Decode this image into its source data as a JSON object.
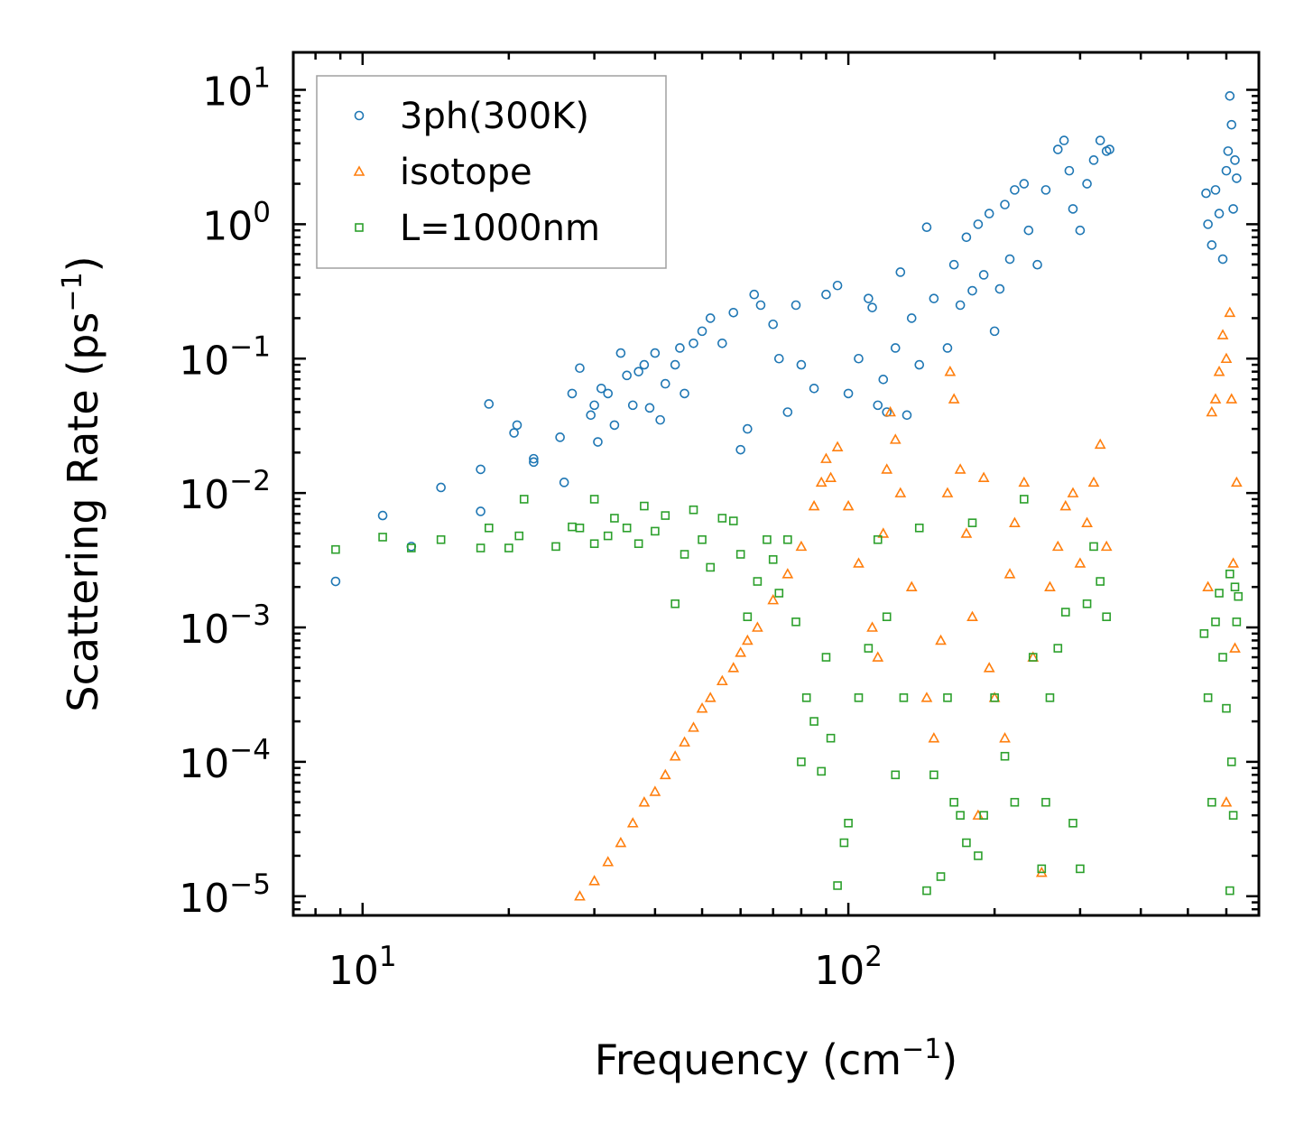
{
  "chart_data": {
    "type": "scatter",
    "scale": {
      "x": "log",
      "y": "log"
    },
    "xlabel": "Frequency (cm",
    "xlabel_sup": "−1",
    "xlabel_end": ")",
    "ylabel": "Scattering Rate (ps",
    "ylabel_sup": "−1",
    "ylabel_end": ")",
    "xlim": [
      7.2,
      700
    ],
    "ylim": [
      7.2e-06,
      19
    ],
    "grid": false,
    "legend_position": "top-left",
    "x_ticks": [
      {
        "value": 10,
        "base": "10",
        "exp": "1"
      },
      {
        "value": 100,
        "base": "10",
        "exp": "2"
      }
    ],
    "y_ticks": [
      {
        "value": 10,
        "base": "10",
        "exp": "1"
      },
      {
        "value": 1,
        "base": "10",
        "exp": "0"
      },
      {
        "value": 0.1,
        "base": "10",
        "exp": "−1"
      },
      {
        "value": 0.01,
        "base": "10",
        "exp": "−2"
      },
      {
        "value": 0.001,
        "base": "10",
        "exp": "−3"
      },
      {
        "value": 0.0001,
        "base": "10",
        "exp": "−4"
      },
      {
        "value": 1e-05,
        "base": "10",
        "exp": "−5"
      }
    ],
    "series": [
      {
        "name": "3ph(300K)",
        "marker": "circle",
        "color": "#1f77b4",
        "points": [
          [
            8.8,
            0.0022
          ],
          [
            11,
            0.0068
          ],
          [
            12.6,
            0.004
          ],
          [
            14.5,
            0.011
          ],
          [
            17.5,
            0.0073
          ],
          [
            17.5,
            0.015
          ],
          [
            18.2,
            0.046
          ],
          [
            20.5,
            0.028
          ],
          [
            20.8,
            0.032
          ],
          [
            22.5,
            0.017
          ],
          [
            22.5,
            0.018
          ],
          [
            25.5,
            0.026
          ],
          [
            26,
            0.012
          ],
          [
            27,
            0.055
          ],
          [
            28,
            0.085
          ],
          [
            29.5,
            0.038
          ],
          [
            30,
            0.045
          ],
          [
            30.5,
            0.024
          ],
          [
            31,
            0.06
          ],
          [
            32,
            0.055
          ],
          [
            33,
            0.032
          ],
          [
            34,
            0.11
          ],
          [
            35,
            0.075
          ],
          [
            36,
            0.045
          ],
          [
            37,
            0.08
          ],
          [
            38,
            0.09
          ],
          [
            39,
            0.043
          ],
          [
            40,
            0.11
          ],
          [
            41,
            0.035
          ],
          [
            42,
            0.065
          ],
          [
            44,
            0.09
          ],
          [
            45,
            0.12
          ],
          [
            46,
            0.055
          ],
          [
            48,
            0.13
          ],
          [
            50,
            0.16
          ],
          [
            52,
            0.2
          ],
          [
            55,
            0.13
          ],
          [
            58,
            0.22
          ],
          [
            60,
            0.021
          ],
          [
            62,
            0.03
          ],
          [
            64,
            0.3
          ],
          [
            66,
            0.25
          ],
          [
            70,
            0.18
          ],
          [
            72,
            0.1
          ],
          [
            75,
            0.04
          ],
          [
            78,
            0.25
          ],
          [
            80,
            0.09
          ],
          [
            85,
            0.06
          ],
          [
            90,
            0.3
          ],
          [
            95,
            0.35
          ],
          [
            100,
            0.055
          ],
          [
            105,
            0.1
          ],
          [
            110,
            0.28
          ],
          [
            112,
            0.24
          ],
          [
            115,
            0.045
          ],
          [
            118,
            0.07
          ],
          [
            120,
            0.04
          ],
          [
            125,
            0.12
          ],
          [
            128,
            0.44
          ],
          [
            132,
            0.038
          ],
          [
            135,
            0.2
          ],
          [
            140,
            0.09
          ],
          [
            145,
            0.95
          ],
          [
            150,
            0.28
          ],
          [
            160,
            0.12
          ],
          [
            165,
            0.5
          ],
          [
            170,
            0.25
          ],
          [
            175,
            0.8
          ],
          [
            180,
            0.32
          ],
          [
            185,
            1.0
          ],
          [
            190,
            0.42
          ],
          [
            195,
            1.2
          ],
          [
            200,
            0.16
          ],
          [
            205,
            0.33
          ],
          [
            210,
            1.4
          ],
          [
            215,
            0.55
          ],
          [
            220,
            1.8
          ],
          [
            230,
            2.0
          ],
          [
            235,
            0.9
          ],
          [
            245,
            0.5
          ],
          [
            255,
            1.8
          ],
          [
            270,
            3.6
          ],
          [
            278,
            4.2
          ],
          [
            285,
            2.5
          ],
          [
            290,
            1.3
          ],
          [
            300,
            0.9
          ],
          [
            310,
            2.0
          ],
          [
            320,
            3.0
          ],
          [
            330,
            4.2
          ],
          [
            340,
            3.5
          ],
          [
            345,
            3.6
          ],
          [
            545,
            1.7
          ],
          [
            550,
            1.0
          ],
          [
            560,
            0.7
          ],
          [
            570,
            1.8
          ],
          [
            580,
            1.2
          ],
          [
            590,
            0.55
          ],
          [
            600,
            2.5
          ],
          [
            605,
            3.5
          ],
          [
            610,
            9.0
          ],
          [
            615,
            5.5
          ],
          [
            620,
            1.3
          ],
          [
            625,
            3.0
          ],
          [
            630,
            2.2
          ]
        ]
      },
      {
        "name": "isotope",
        "marker": "triangle",
        "color": "#ff7f0e",
        "points": [
          [
            28,
            1e-05
          ],
          [
            30,
            1.3e-05
          ],
          [
            32,
            1.8e-05
          ],
          [
            34,
            2.5e-05
          ],
          [
            36,
            3.5e-05
          ],
          [
            38,
            5e-05
          ],
          [
            40,
            6e-05
          ],
          [
            42,
            8e-05
          ],
          [
            44,
            0.00011
          ],
          [
            46,
            0.00014
          ],
          [
            48,
            0.00018
          ],
          [
            50,
            0.00025
          ],
          [
            52,
            0.0003
          ],
          [
            55,
            0.0004
          ],
          [
            58,
            0.0005
          ],
          [
            60,
            0.00065
          ],
          [
            62,
            0.0008
          ],
          [
            65,
            0.001
          ],
          [
            70,
            0.0016
          ],
          [
            75,
            0.0025
          ],
          [
            80,
            0.004
          ],
          [
            85,
            0.008
          ],
          [
            88,
            0.012
          ],
          [
            90,
            0.018
          ],
          [
            92,
            0.013
          ],
          [
            95,
            0.022
          ],
          [
            100,
            0.008
          ],
          [
            105,
            0.003
          ],
          [
            112,
            0.001
          ],
          [
            115,
            0.0006
          ],
          [
            118,
            0.005
          ],
          [
            120,
            0.015
          ],
          [
            122,
            0.04
          ],
          [
            125,
            0.025
          ],
          [
            128,
            0.01
          ],
          [
            135,
            0.002
          ],
          [
            145,
            0.0003
          ],
          [
            150,
            0.00015
          ],
          [
            155,
            0.0008
          ],
          [
            160,
            0.01
          ],
          [
            162,
            0.08
          ],
          [
            165,
            0.05
          ],
          [
            170,
            0.015
          ],
          [
            175,
            0.005
          ],
          [
            180,
            0.0012
          ],
          [
            185,
            4e-05
          ],
          [
            190,
            0.013
          ],
          [
            195,
            0.0005
          ],
          [
            200,
            0.0003
          ],
          [
            210,
            0.00015
          ],
          [
            215,
            0.0025
          ],
          [
            220,
            0.006
          ],
          [
            230,
            0.012
          ],
          [
            240,
            0.0006
          ],
          [
            250,
            1.5e-05
          ],
          [
            260,
            0.002
          ],
          [
            270,
            0.004
          ],
          [
            280,
            0.008
          ],
          [
            290,
            0.01
          ],
          [
            300,
            0.003
          ],
          [
            310,
            0.006
          ],
          [
            320,
            0.012
          ],
          [
            330,
            0.023
          ],
          [
            340,
            0.004
          ],
          [
            550,
            0.002
          ],
          [
            560,
            0.04
          ],
          [
            570,
            0.05
          ],
          [
            580,
            0.08
          ],
          [
            590,
            0.15
          ],
          [
            600,
            0.1
          ],
          [
            610,
            0.22
          ],
          [
            615,
            0.05
          ],
          [
            620,
            0.003
          ],
          [
            630,
            0.012
          ],
          [
            625,
            0.0007
          ],
          [
            600,
            5e-05
          ]
        ]
      },
      {
        "name": "L=1000nm",
        "marker": "square",
        "color": "#2ca02c",
        "points": [
          [
            8.8,
            0.0038
          ],
          [
            11,
            0.0047
          ],
          [
            12.6,
            0.0039
          ],
          [
            14.5,
            0.0045
          ],
          [
            17.5,
            0.0039
          ],
          [
            18.2,
            0.0055
          ],
          [
            20,
            0.0039
          ],
          [
            21,
            0.0048
          ],
          [
            21.5,
            0.009
          ],
          [
            25,
            0.004
          ],
          [
            27,
            0.0056
          ],
          [
            28,
            0.0055
          ],
          [
            30,
            0.009
          ],
          [
            30,
            0.0042
          ],
          [
            32,
            0.0048
          ],
          [
            33,
            0.0065
          ],
          [
            35,
            0.0055
          ],
          [
            37,
            0.0042
          ],
          [
            38,
            0.008
          ],
          [
            40,
            0.0052
          ],
          [
            42,
            0.0068
          ],
          [
            44,
            0.0015
          ],
          [
            46,
            0.0035
          ],
          [
            48,
            0.0075
          ],
          [
            50,
            0.0045
          ],
          [
            52,
            0.0028
          ],
          [
            55,
            0.0065
          ],
          [
            58,
            0.0062
          ],
          [
            60,
            0.0035
          ],
          [
            62,
            0.0012
          ],
          [
            65,
            0.0022
          ],
          [
            68,
            0.0045
          ],
          [
            70,
            0.0032
          ],
          [
            72,
            0.0018
          ],
          [
            75,
            0.0045
          ],
          [
            78,
            0.0011
          ],
          [
            80,
            0.0001
          ],
          [
            82,
            0.0003
          ],
          [
            85,
            0.0002
          ],
          [
            88,
            8.5e-05
          ],
          [
            90,
            0.0006
          ],
          [
            92,
            0.00015
          ],
          [
            95,
            1.2e-05
          ],
          [
            98,
            2.5e-05
          ],
          [
            100,
            3.5e-05
          ],
          [
            105,
            0.0003
          ],
          [
            110,
            0.0007
          ],
          [
            115,
            0.0045
          ],
          [
            120,
            0.0012
          ],
          [
            125,
            8e-05
          ],
          [
            130,
            0.0003
          ],
          [
            140,
            0.0055
          ],
          [
            145,
            1.1e-05
          ],
          [
            150,
            8e-05
          ],
          [
            155,
            1.4e-05
          ],
          [
            160,
            0.0003
          ],
          [
            165,
            5e-05
          ],
          [
            170,
            4e-05
          ],
          [
            175,
            2.5e-05
          ],
          [
            180,
            0.006
          ],
          [
            185,
            2e-05
          ],
          [
            190,
            4e-05
          ],
          [
            200,
            0.0003
          ],
          [
            210,
            0.00011
          ],
          [
            220,
            5e-05
          ],
          [
            230,
            0.009
          ],
          [
            240,
            0.0006
          ],
          [
            250,
            1.6e-05
          ],
          [
            255,
            5e-05
          ],
          [
            260,
            0.0003
          ],
          [
            270,
            0.0007
          ],
          [
            280,
            0.0013
          ],
          [
            290,
            3.5e-05
          ],
          [
            300,
            1.6e-05
          ],
          [
            310,
            0.0015
          ],
          [
            320,
            0.004
          ],
          [
            330,
            0.0022
          ],
          [
            340,
            0.0012
          ],
          [
            540,
            0.0009
          ],
          [
            550,
            0.0003
          ],
          [
            560,
            5e-05
          ],
          [
            570,
            0.0011
          ],
          [
            580,
            0.0018
          ],
          [
            590,
            0.0006
          ],
          [
            600,
            0.00025
          ],
          [
            610,
            0.0025
          ],
          [
            615,
            0.0001
          ],
          [
            620,
            4e-05
          ],
          [
            610,
            1.1e-05
          ],
          [
            625,
            0.002
          ],
          [
            630,
            0.0011
          ],
          [
            635,
            0.0017
          ]
        ]
      }
    ]
  }
}
